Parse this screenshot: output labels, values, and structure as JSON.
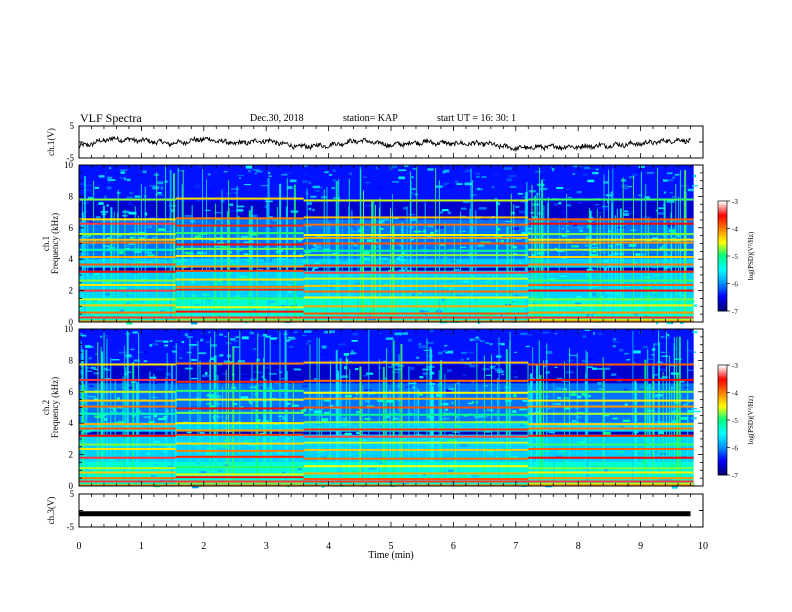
{
  "header": {
    "title": "VLF Spectra",
    "date": "Dec.30, 2018",
    "station": "station= KAP",
    "start": "start  UT =   16: 30: 1"
  },
  "chart_data": [
    {
      "type": "line",
      "panel": "ch1-waveform",
      "ylabel": "ch.1(V)",
      "yticks": [
        "5",
        "-5"
      ],
      "ylim": [
        -5,
        5
      ],
      "xlim": [
        0,
        10
      ],
      "x_unit": "min",
      "description_values": {
        "x": [
          0,
          0.5,
          1,
          1.5,
          2,
          2.5,
          3,
          3.5,
          4,
          4.5,
          5,
          5.5,
          6,
          6.5,
          7,
          7.5,
          8,
          8.5,
          9,
          9.5,
          9.8
        ],
        "y": [
          -1.5,
          1.0,
          0.5,
          -0.5,
          1.0,
          -0.5,
          0.5,
          -1.5,
          -1.0,
          0.5,
          -1.0,
          0.0,
          -0.5,
          -0.5,
          -2.0,
          -1.5,
          -1.5,
          -1.0,
          -0.5,
          0.5,
          0.5
        ]
      },
      "color": "#000000"
    },
    {
      "type": "heatmap",
      "panel": "ch1-spectrogram",
      "ylabel_top": "ch.1",
      "ylabel": "Frequency (kHz)",
      "yticks": [
        "0",
        "2",
        "4",
        "6",
        "8",
        "10"
      ],
      "ylim": [
        0,
        10
      ],
      "xlim": [
        0,
        10
      ],
      "colorbar": {
        "label": "log(PSD)(V²/Hz)",
        "ticks": [
          "-3",
          "-4",
          "-5",
          "-6",
          "-7"
        ],
        "range": [
          -7,
          -3
        ]
      },
      "colormap": [
        "#00008b",
        "#0000ff",
        "#00a0ff",
        "#00ffff",
        "#00ff80",
        "#ffff00",
        "#ff8000",
        "#ff0000",
        "#ffffff"
      ],
      "tones_khz": [
        0.2,
        0.6,
        1.0,
        1.5,
        2.0,
        2.3,
        2.7,
        3.2,
        3.6,
        4.2,
        4.6,
        5.0,
        5.3,
        5.6,
        6.2,
        6.6,
        7.8
      ]
    },
    {
      "type": "heatmap",
      "panel": "ch2-spectrogram",
      "ylabel_top": "ch.2",
      "ylabel": "Frequency (kHz)",
      "yticks": [
        "0",
        "2",
        "4",
        "6",
        "8",
        "10"
      ],
      "ylim": [
        0,
        10
      ],
      "xlim": [
        0,
        10
      ],
      "colorbar": {
        "label": "log(PSD)(V²/Hz)",
        "ticks": [
          "-3",
          "-4",
          "-5",
          "-6",
          "-7"
        ],
        "range": [
          -7,
          -3
        ]
      },
      "tones_khz": [
        0.2,
        0.5,
        0.8,
        1.2,
        1.8,
        2.3,
        2.7,
        3.2,
        3.6,
        4.0,
        4.6,
        5.0,
        5.5,
        6.0,
        6.7,
        7.8
      ]
    },
    {
      "type": "line",
      "panel": "ch3-waveform",
      "ylabel": "ch.3(V)",
      "yticks": [
        "5",
        "-5"
      ],
      "ylim": [
        -5,
        5
      ],
      "xlim": [
        0,
        10
      ],
      "x": [
        0,
        9.8
      ],
      "y": [
        -1.0,
        -1.0
      ],
      "color": "#000000"
    }
  ],
  "xaxis": {
    "label": "Time  (min)",
    "ticks": [
      "0",
      "1",
      "2",
      "3",
      "4",
      "5",
      "6",
      "7",
      "8",
      "9",
      "10"
    ]
  }
}
